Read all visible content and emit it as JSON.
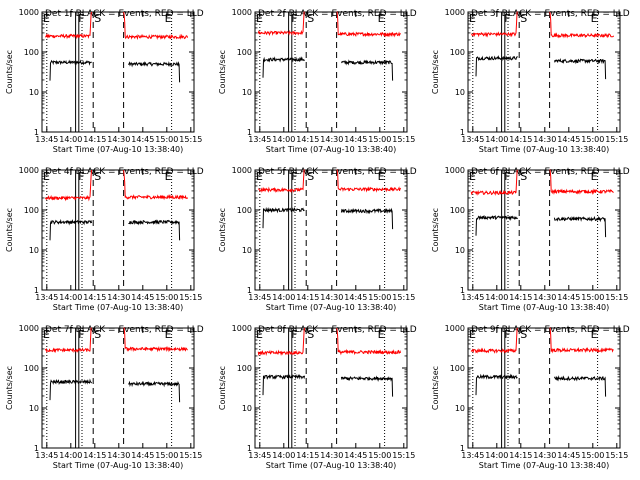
{
  "window": {
    "title": "Detector count rate panels"
  },
  "colors": {
    "events": "#000000",
    "lld": "#ff0000",
    "background": "#ffffff",
    "axes": "#000000"
  },
  "chart_data": [
    {
      "type": "line",
      "title": "Det 1f BLACK = Events, RED = LLD",
      "xlabel": "Start Time (07-Aug-10 13:38:40)",
      "ylabel": "Counts/sec",
      "yscale": "log",
      "ylim": [
        1,
        1000
      ],
      "xlim_minutes": [
        "13:42",
        "15:17"
      ],
      "x_ticks": [
        "13:45",
        "14:00",
        "14:15",
        "14:30",
        "14:45",
        "15:00",
        "15:15"
      ],
      "y_ticks": [
        "1",
        "10",
        "100",
        "1000"
      ],
      "markers": [
        {
          "label": "E",
          "time": "13:42"
        },
        {
          "label": "F",
          "time": "14:04"
        },
        {
          "label": "S",
          "time": "14:14"
        },
        {
          "label": "E",
          "time": "14:58"
        }
      ],
      "series": [
        {
          "name": "Events",
          "color": "#000000",
          "segments": [
            {
              "start": "13:47",
              "end": "14:13",
              "level": 55
            },
            {
              "start": "14:36",
              "end": "15:08",
              "level": 50
            }
          ]
        },
        {
          "name": "LLD",
          "color": "#ff0000",
          "segments": [
            {
              "start": "13:44",
              "end": "14:13",
              "level": 250
            },
            {
              "start": "14:33",
              "end": "15:13",
              "level": 240
            }
          ]
        }
      ]
    },
    {
      "type": "line",
      "title": "Det 2f BLACK = Events, RED = LLD",
      "xlabel": "Start Time (07-Aug-10 13:38:40)",
      "ylabel": "Counts/sec",
      "yscale": "log",
      "ylim": [
        1,
        1000
      ],
      "xlim_minutes": [
        "13:42",
        "15:17"
      ],
      "x_ticks": [
        "13:45",
        "14:00",
        "14:15",
        "14:30",
        "14:45",
        "15:00",
        "15:15"
      ],
      "y_ticks": [
        "1",
        "10",
        "100",
        "1000"
      ],
      "markers": [
        {
          "label": "E",
          "time": "13:42"
        },
        {
          "label": "F",
          "time": "14:04"
        },
        {
          "label": "S",
          "time": "14:14"
        },
        {
          "label": "E",
          "time": "14:58"
        }
      ],
      "series": [
        {
          "name": "Events",
          "color": "#000000",
          "segments": [
            {
              "start": "13:47",
              "end": "14:13",
              "level": 65
            },
            {
              "start": "14:36",
              "end": "15:08",
              "level": 55
            }
          ]
        },
        {
          "name": "LLD",
          "color": "#ff0000",
          "segments": [
            {
              "start": "13:44",
              "end": "14:13",
              "level": 300
            },
            {
              "start": "14:33",
              "end": "15:13",
              "level": 280
            }
          ]
        }
      ]
    },
    {
      "type": "line",
      "title": "Det 3f BLACK = Events, RED = LLD",
      "xlabel": "Start Time (07-Aug-10 13:38:40)",
      "ylabel": "Counts/sec",
      "yscale": "log",
      "ylim": [
        1,
        1000
      ],
      "xlim_minutes": [
        "13:42",
        "15:17"
      ],
      "x_ticks": [
        "13:45",
        "14:00",
        "14:15",
        "14:30",
        "14:45",
        "15:00",
        "15:15"
      ],
      "y_ticks": [
        "1",
        "10",
        "100",
        "1000"
      ],
      "markers": [
        {
          "label": "E",
          "time": "13:42"
        },
        {
          "label": "F",
          "time": "14:04"
        },
        {
          "label": "S",
          "time": "14:14"
        },
        {
          "label": "E",
          "time": "14:58"
        }
      ],
      "series": [
        {
          "name": "Events",
          "color": "#000000",
          "segments": [
            {
              "start": "13:47",
              "end": "14:13",
              "level": 70
            },
            {
              "start": "14:36",
              "end": "15:08",
              "level": 60
            }
          ]
        },
        {
          "name": "LLD",
          "color": "#ff0000",
          "segments": [
            {
              "start": "13:44",
              "end": "14:13",
              "level": 280
            },
            {
              "start": "14:33",
              "end": "15:13",
              "level": 260
            }
          ]
        }
      ]
    },
    {
      "type": "line",
      "title": "Det 4f BLACK = Events, RED = LLD",
      "xlabel": "Start Time (07-Aug-10 13:38:40)",
      "ylabel": "Counts/sec",
      "yscale": "log",
      "ylim": [
        1,
        1000
      ],
      "xlim_minutes": [
        "13:42",
        "15:17"
      ],
      "x_ticks": [
        "13:45",
        "14:00",
        "14:15",
        "14:30",
        "14:45",
        "15:00",
        "15:15"
      ],
      "y_ticks": [
        "1",
        "10",
        "100",
        "1000"
      ],
      "markers": [
        {
          "label": "E",
          "time": "13:42"
        },
        {
          "label": "F",
          "time": "14:04"
        },
        {
          "label": "S",
          "time": "14:14"
        },
        {
          "label": "E",
          "time": "14:58"
        }
      ],
      "series": [
        {
          "name": "Events",
          "color": "#000000",
          "segments": [
            {
              "start": "13:47",
              "end": "14:13",
              "level": 50
            },
            {
              "start": "14:36",
              "end": "15:08",
              "level": 50
            }
          ]
        },
        {
          "name": "LLD",
          "color": "#ff0000",
          "segments": [
            {
              "start": "13:44",
              "end": "14:13",
              "level": 200
            },
            {
              "start": "14:33",
              "end": "15:13",
              "level": 210
            }
          ]
        }
      ]
    },
    {
      "type": "line",
      "title": "Det 5f BLACK = Events, RED = LLD",
      "xlabel": "Start Time (07-Aug-10 13:38:40)",
      "ylabel": "Counts/sec",
      "yscale": "log",
      "ylim": [
        1,
        1000
      ],
      "xlim_minutes": [
        "13:42",
        "15:17"
      ],
      "x_ticks": [
        "13:45",
        "14:00",
        "14:15",
        "14:30",
        "14:45",
        "15:00",
        "15:15"
      ],
      "y_ticks": [
        "1",
        "10",
        "100",
        "1000"
      ],
      "markers": [
        {
          "label": "E",
          "time": "13:42"
        },
        {
          "label": "F",
          "time": "14:04"
        },
        {
          "label": "S",
          "time": "14:14"
        },
        {
          "label": "E",
          "time": "14:58"
        }
      ],
      "series": [
        {
          "name": "Events",
          "color": "#000000",
          "segments": [
            {
              "start": "13:47",
              "end": "14:13",
              "level": 100
            },
            {
              "start": "14:36",
              "end": "15:08",
              "level": 95
            }
          ]
        },
        {
          "name": "LLD",
          "color": "#ff0000",
          "segments": [
            {
              "start": "13:44",
              "end": "14:13",
              "level": 320
            },
            {
              "start": "14:33",
              "end": "15:13",
              "level": 330
            }
          ]
        }
      ]
    },
    {
      "type": "line",
      "title": "Det 6f BLACK = Events, RED = LLD",
      "xlabel": "Start Time (07-Aug-10 13:38:40)",
      "ylabel": "Counts/sec",
      "yscale": "log",
      "ylim": [
        1,
        1000
      ],
      "xlim_minutes": [
        "13:42",
        "15:17"
      ],
      "x_ticks": [
        "13:45",
        "14:00",
        "14:15",
        "14:30",
        "14:45",
        "15:00",
        "15:15"
      ],
      "y_ticks": [
        "1",
        "10",
        "100",
        "1000"
      ],
      "markers": [
        {
          "label": "E",
          "time": "13:42"
        },
        {
          "label": "F",
          "time": "14:04"
        },
        {
          "label": "S",
          "time": "14:14"
        },
        {
          "label": "E",
          "time": "14:58"
        }
      ],
      "series": [
        {
          "name": "Events",
          "color": "#000000",
          "segments": [
            {
              "start": "13:47",
              "end": "14:13",
              "level": 65
            },
            {
              "start": "14:36",
              "end": "15:08",
              "level": 60
            }
          ]
        },
        {
          "name": "LLD",
          "color": "#ff0000",
          "segments": [
            {
              "start": "13:44",
              "end": "14:13",
              "level": 270
            },
            {
              "start": "14:33",
              "end": "15:13",
              "level": 290
            }
          ]
        }
      ]
    },
    {
      "type": "line",
      "title": "Det 7f BLACK = Events, RED = LLD",
      "xlabel": "Start Time (07-Aug-10 13:38:40)",
      "ylabel": "Counts/sec",
      "yscale": "log",
      "ylim": [
        1,
        1000
      ],
      "xlim_minutes": [
        "13:42",
        "15:17"
      ],
      "x_ticks": [
        "13:45",
        "14:00",
        "14:15",
        "14:30",
        "14:45",
        "15:00",
        "15:15"
      ],
      "y_ticks": [
        "1",
        "10",
        "100",
        "1000"
      ],
      "markers": [
        {
          "label": "E",
          "time": "13:42"
        },
        {
          "label": "F",
          "time": "14:04"
        },
        {
          "label": "S",
          "time": "14:14"
        },
        {
          "label": "E",
          "time": "14:58"
        }
      ],
      "series": [
        {
          "name": "Events",
          "color": "#000000",
          "segments": [
            {
              "start": "13:47",
              "end": "14:13",
              "level": 45
            },
            {
              "start": "14:36",
              "end": "15:08",
              "level": 40
            }
          ]
        },
        {
          "name": "LLD",
          "color": "#ff0000",
          "segments": [
            {
              "start": "13:44",
              "end": "14:13",
              "level": 280
            },
            {
              "start": "14:33",
              "end": "15:13",
              "level": 300
            }
          ]
        }
      ]
    },
    {
      "type": "line",
      "title": "Det 8f BLACK = Events, RED = LLD",
      "xlabel": "Start Time (07-Aug-10 13:38:40)",
      "ylabel": "Counts/sec",
      "yscale": "log",
      "ylim": [
        1,
        1000
      ],
      "xlim_minutes": [
        "13:42",
        "15:17"
      ],
      "x_ticks": [
        "13:45",
        "14:00",
        "14:15",
        "14:30",
        "14:45",
        "15:00",
        "15:15"
      ],
      "y_ticks": [
        "1",
        "10",
        "100",
        "1000"
      ],
      "markers": [
        {
          "label": "E",
          "time": "13:42"
        },
        {
          "label": "F",
          "time": "14:04"
        },
        {
          "label": "S",
          "time": "14:14"
        },
        {
          "label": "E",
          "time": "14:58"
        }
      ],
      "series": [
        {
          "name": "Events",
          "color": "#000000",
          "segments": [
            {
              "start": "13:47",
              "end": "14:13",
              "level": 60
            },
            {
              "start": "14:36",
              "end": "15:08",
              "level": 55
            }
          ]
        },
        {
          "name": "LLD",
          "color": "#ff0000",
          "segments": [
            {
              "start": "13:44",
              "end": "14:13",
              "level": 240
            },
            {
              "start": "14:33",
              "end": "15:13",
              "level": 250
            }
          ]
        }
      ]
    },
    {
      "type": "line",
      "title": "Det 9f BLACK = Events, RED = LLD",
      "xlabel": "Start Time (07-Aug-10 13:38:40)",
      "ylabel": "Counts/sec",
      "yscale": "log",
      "ylim": [
        1,
        1000
      ],
      "xlim_minutes": [
        "13:42",
        "15:17"
      ],
      "x_ticks": [
        "13:45",
        "14:00",
        "14:15",
        "14:30",
        "14:45",
        "15:00",
        "15:15"
      ],
      "y_ticks": [
        "1",
        "10",
        "100",
        "1000"
      ],
      "markers": [
        {
          "label": "E",
          "time": "13:42"
        },
        {
          "label": "F",
          "time": "14:04"
        },
        {
          "label": "S",
          "time": "14:14"
        },
        {
          "label": "E",
          "time": "14:58"
        }
      ],
      "series": [
        {
          "name": "Events",
          "color": "#000000",
          "segments": [
            {
              "start": "13:47",
              "end": "14:13",
              "level": 60
            },
            {
              "start": "14:36",
              "end": "15:08",
              "level": 55
            }
          ]
        },
        {
          "name": "LLD",
          "color": "#ff0000",
          "segments": [
            {
              "start": "13:44",
              "end": "14:13",
              "level": 270
            },
            {
              "start": "14:33",
              "end": "15:13",
              "level": 280
            }
          ]
        }
      ]
    }
  ]
}
